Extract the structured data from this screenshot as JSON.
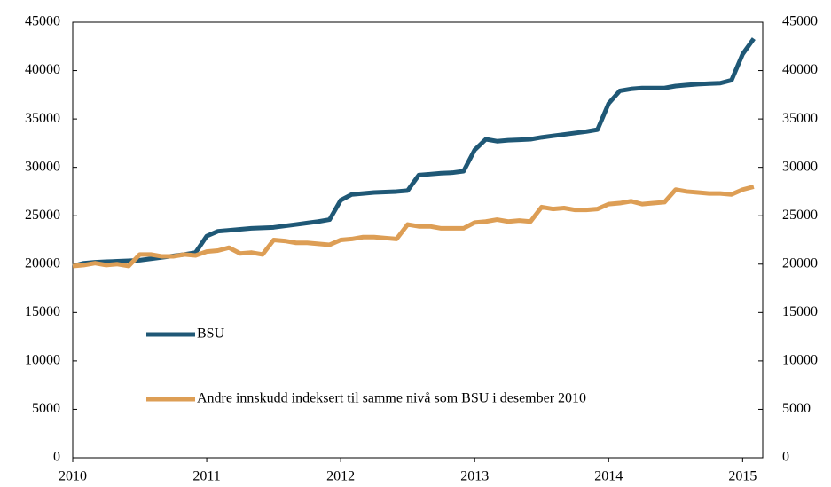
{
  "chart_data": {
    "type": "line",
    "x": [
      2010,
      2010.083,
      2010.167,
      2010.25,
      2010.333,
      2010.417,
      2010.5,
      2010.583,
      2010.667,
      2010.75,
      2010.833,
      2010.917,
      2011,
      2011.083,
      2011.167,
      2011.25,
      2011.333,
      2011.417,
      2011.5,
      2011.583,
      2011.667,
      2011.75,
      2011.833,
      2011.917,
      2012,
      2012.083,
      2012.167,
      2012.25,
      2012.333,
      2012.417,
      2012.5,
      2012.583,
      2012.667,
      2012.75,
      2012.833,
      2012.917,
      2013,
      2013.083,
      2013.167,
      2013.25,
      2013.333,
      2013.417,
      2013.5,
      2013.583,
      2013.667,
      2013.75,
      2013.833,
      2013.917,
      2014,
      2014.083,
      2014.167,
      2014.25,
      2014.333,
      2014.417,
      2014.5,
      2014.583,
      2014.667,
      2014.75,
      2014.833,
      2014.917,
      2015,
      2015.083
    ],
    "series": [
      {
        "name": "BSU",
        "color": "#1f5876",
        "values": [
          19800,
          20100,
          20200,
          20250,
          20300,
          20350,
          20400,
          20550,
          20700,
          20850,
          21000,
          21200,
          22900,
          23400,
          23500,
          23600,
          23700,
          23750,
          23800,
          23950,
          24100,
          24250,
          24400,
          24600,
          26600,
          27200,
          27300,
          27400,
          27450,
          27500,
          27600,
          29200,
          29300,
          29400,
          29450,
          29600,
          31800,
          32900,
          32700,
          32800,
          32850,
          32900,
          33100,
          33250,
          33400,
          33550,
          33700,
          33900,
          36600,
          37900,
          38100,
          38200,
          38200,
          38200,
          38400,
          38500,
          38600,
          38650,
          38700,
          39000,
          41700,
          43300
        ]
      },
      {
        "name": "Andre innskudd indeksert til samme nivå som BSU i desember 2010",
        "color": "#dd9e55",
        "values": [
          19800,
          19900,
          20100,
          19900,
          20000,
          19800,
          21000,
          21000,
          20800,
          20800,
          21000,
          20900,
          21300,
          21400,
          21700,
          21100,
          21200,
          21000,
          22500,
          22400,
          22200,
          22200,
          22100,
          22000,
          22500,
          22600,
          22800,
          22800,
          22700,
          22600,
          24100,
          23900,
          23900,
          23700,
          23700,
          23700,
          24300,
          24400,
          24600,
          24400,
          24500,
          24400,
          25900,
          25700,
          25800,
          25600,
          25600,
          25700,
          26200,
          26300,
          26500,
          26200,
          26300,
          26400,
          27700,
          27500,
          27400,
          27300,
          27300,
          27200,
          27700,
          28000
        ]
      }
    ],
    "xlim": [
      2010,
      2015.15
    ],
    "xticks": [
      2010,
      2011,
      2012,
      2013,
      2014,
      2015
    ],
    "ylim": [
      0,
      45000
    ],
    "yticks": [
      0,
      5000,
      10000,
      15000,
      20000,
      25000,
      30000,
      35000,
      40000,
      45000
    ],
    "y2lim": [
      0,
      45000
    ],
    "y2ticks": [
      0,
      5000,
      10000,
      15000,
      20000,
      25000,
      30000,
      35000,
      40000,
      45000
    ],
    "legend": "lower left",
    "grid": false
  }
}
